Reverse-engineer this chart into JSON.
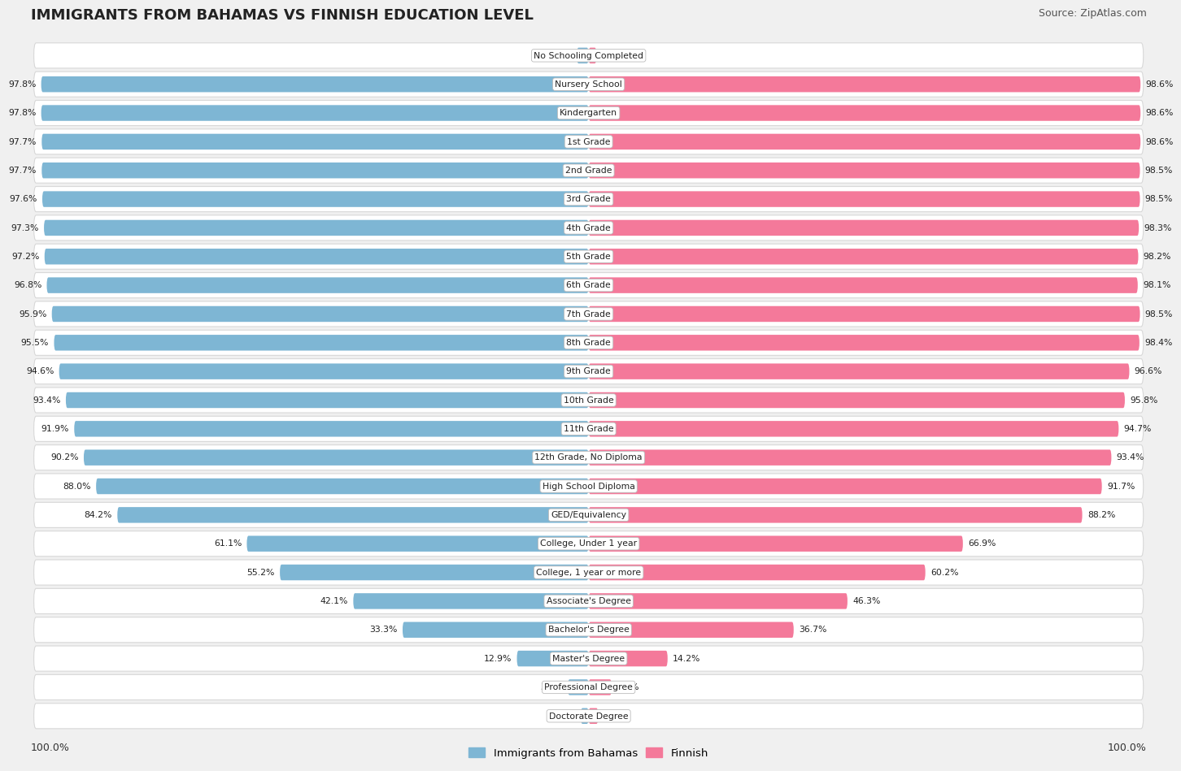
{
  "title": "IMMIGRANTS FROM BAHAMAS VS FINNISH EDUCATION LEVEL",
  "source": "Source: ZipAtlas.com",
  "categories": [
    "No Schooling Completed",
    "Nursery School",
    "Kindergarten",
    "1st Grade",
    "2nd Grade",
    "3rd Grade",
    "4th Grade",
    "5th Grade",
    "6th Grade",
    "7th Grade",
    "8th Grade",
    "9th Grade",
    "10th Grade",
    "11th Grade",
    "12th Grade, No Diploma",
    "High School Diploma",
    "GED/Equivalency",
    "College, Under 1 year",
    "College, 1 year or more",
    "Associate's Degree",
    "Bachelor's Degree",
    "Master's Degree",
    "Professional Degree",
    "Doctorate Degree"
  ],
  "bahamas": [
    2.2,
    97.8,
    97.8,
    97.7,
    97.7,
    97.6,
    97.3,
    97.2,
    96.8,
    95.9,
    95.5,
    94.6,
    93.4,
    91.9,
    90.2,
    88.0,
    84.2,
    61.1,
    55.2,
    42.1,
    33.3,
    12.9,
    3.8,
    1.5
  ],
  "finnish": [
    1.5,
    98.6,
    98.6,
    98.6,
    98.5,
    98.5,
    98.3,
    98.2,
    98.1,
    98.5,
    98.4,
    96.6,
    95.8,
    94.7,
    93.4,
    91.7,
    88.2,
    66.9,
    60.2,
    46.3,
    36.7,
    14.2,
    4.2,
    1.8
  ],
  "bahamas_color": "#7eb6d4",
  "finnish_color": "#f4799a",
  "background_color": "#f0f0f0",
  "bar_background": "#ffffff",
  "legend_labels": [
    "Immigrants from Bahamas",
    "Finnish"
  ],
  "axis_label_left": "100.0%",
  "axis_label_right": "100.0%"
}
